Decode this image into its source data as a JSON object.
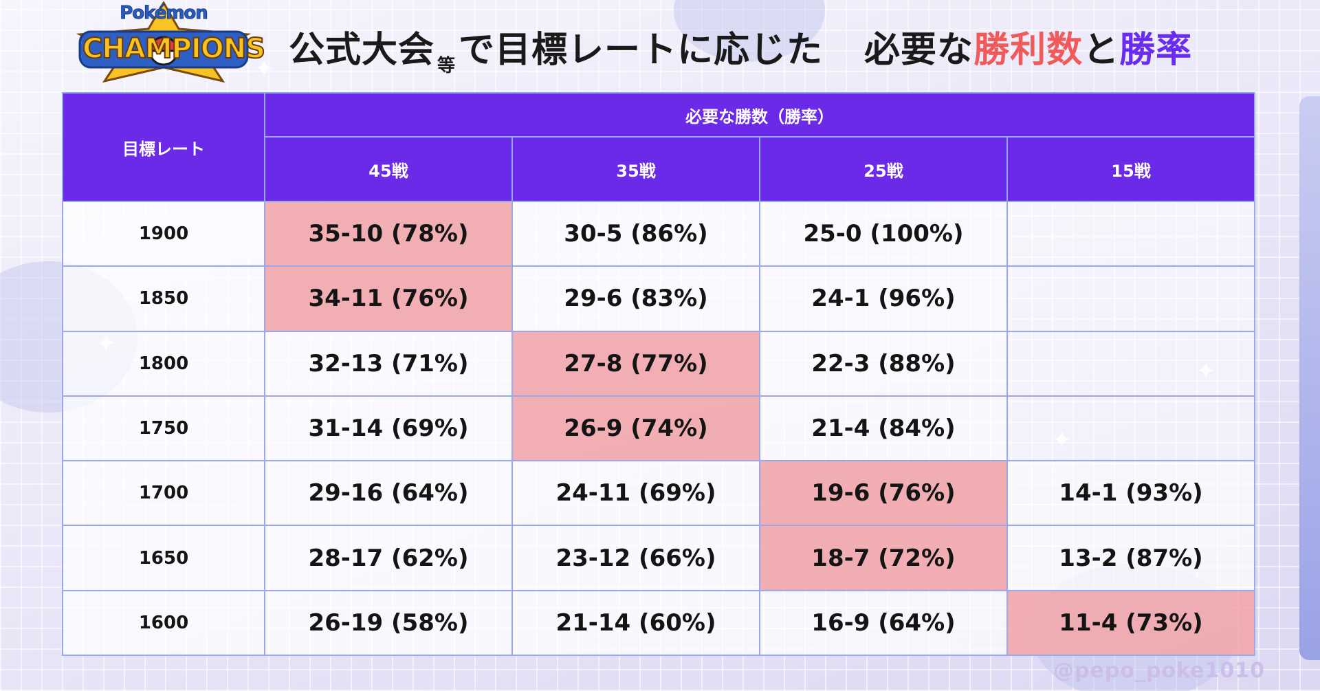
{
  "logo": {
    "top_text": "Pokémon",
    "main_text": "CHAMPIONS"
  },
  "title": {
    "part1": "公式大会",
    "small": "等",
    "part2": "で目標レートに応じた",
    "part3": "必要な",
    "red": "勝利数",
    "part4": "と",
    "purple": "勝率"
  },
  "table": {
    "row_header": "目標レート",
    "group_header": "必要な勝数（勝率）",
    "columns": [
      "45戦",
      "35戦",
      "25戦",
      "15戦"
    ],
    "rows": [
      {
        "rate": "1900",
        "cells": [
          "35-10 (78%)",
          "30-5 (86%)",
          "25-0 (100%)",
          ""
        ],
        "highlight": [
          0
        ]
      },
      {
        "rate": "1850",
        "cells": [
          "34-11 (76%)",
          "29-6 (83%)",
          "24-1 (96%)",
          ""
        ],
        "highlight": [
          0
        ]
      },
      {
        "rate": "1800",
        "cells": [
          "32-13 (71%)",
          "27-8 (77%)",
          "22-3 (88%)",
          ""
        ],
        "highlight": [
          1
        ]
      },
      {
        "rate": "1750",
        "cells": [
          "31-14 (69%)",
          "26-9 (74%)",
          "21-4 (84%)",
          ""
        ],
        "highlight": [
          1
        ]
      },
      {
        "rate": "1700",
        "cells": [
          "29-16 (64%)",
          "24-11 (69%)",
          "19-6 (76%)",
          "14-1 (93%)"
        ],
        "highlight": [
          2
        ]
      },
      {
        "rate": "1650",
        "cells": [
          "28-17 (62%)",
          "23-12 (66%)",
          "18-7 (72%)",
          "13-2 (87%)"
        ],
        "highlight": [
          2
        ]
      },
      {
        "rate": "1600",
        "cells": [
          "26-19 (58%)",
          "21-14 (60%)",
          "16-9 (64%)",
          "11-4 (73%)"
        ],
        "highlight": [
          3
        ]
      }
    ]
  },
  "credit": "@pepo_poke1010",
  "colors": {
    "header": "#6a2ae8",
    "highlight": "#f1a6aa",
    "accent_red": "#f05a5a",
    "accent_purple": "#6a2cf0"
  },
  "chart_data": {
    "type": "table",
    "title": "公式大会等で目標レートに応じた 必要な勝利数と勝率",
    "row_label": "目標レート",
    "column_group_label": "必要な勝数（勝率）",
    "columns": [
      "45戦",
      "35戦",
      "25戦",
      "15戦"
    ],
    "rows": [
      {
        "rate": 1900,
        "values": [
          {
            "wins": 35,
            "losses": 10,
            "win_rate": 78
          },
          {
            "wins": 30,
            "losses": 5,
            "win_rate": 86
          },
          {
            "wins": 25,
            "losses": 0,
            "win_rate": 100
          },
          null
        ]
      },
      {
        "rate": 1850,
        "values": [
          {
            "wins": 34,
            "losses": 11,
            "win_rate": 76
          },
          {
            "wins": 29,
            "losses": 6,
            "win_rate": 83
          },
          {
            "wins": 24,
            "losses": 1,
            "win_rate": 96
          },
          null
        ]
      },
      {
        "rate": 1800,
        "values": [
          {
            "wins": 32,
            "losses": 13,
            "win_rate": 71
          },
          {
            "wins": 27,
            "losses": 8,
            "win_rate": 77
          },
          {
            "wins": 22,
            "losses": 3,
            "win_rate": 88
          },
          null
        ]
      },
      {
        "rate": 1750,
        "values": [
          {
            "wins": 31,
            "losses": 14,
            "win_rate": 69
          },
          {
            "wins": 26,
            "losses": 9,
            "win_rate": 74
          },
          {
            "wins": 21,
            "losses": 4,
            "win_rate": 84
          },
          null
        ]
      },
      {
        "rate": 1700,
        "values": [
          {
            "wins": 29,
            "losses": 16,
            "win_rate": 64
          },
          {
            "wins": 24,
            "losses": 11,
            "win_rate": 69
          },
          {
            "wins": 19,
            "losses": 6,
            "win_rate": 76
          },
          {
            "wins": 14,
            "losses": 1,
            "win_rate": 93
          }
        ]
      },
      {
        "rate": 1650,
        "values": [
          {
            "wins": 28,
            "losses": 17,
            "win_rate": 62
          },
          {
            "wins": 23,
            "losses": 12,
            "win_rate": 66
          },
          {
            "wins": 18,
            "losses": 7,
            "win_rate": 72
          },
          {
            "wins": 13,
            "losses": 2,
            "win_rate": 87
          }
        ]
      },
      {
        "rate": 1600,
        "values": [
          {
            "wins": 26,
            "losses": 19,
            "win_rate": 58
          },
          {
            "wins": 21,
            "losses": 14,
            "win_rate": 60
          },
          {
            "wins": 16,
            "losses": 9,
            "win_rate": 64
          },
          {
            "wins": 11,
            "losses": 4,
            "win_rate": 73
          }
        ]
      }
    ]
  }
}
